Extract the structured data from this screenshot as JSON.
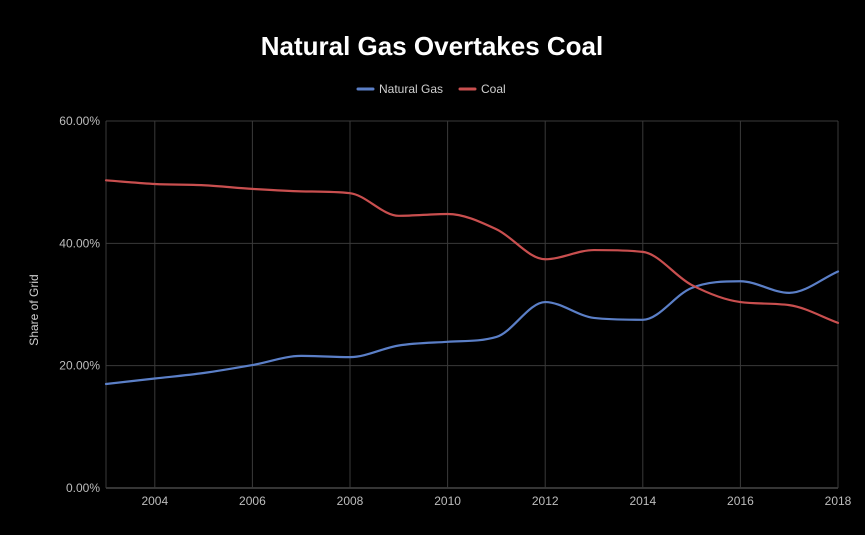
{
  "chart_data": {
    "type": "line",
    "title": "Natural Gas Overtakes Coal",
    "xlabel": "",
    "ylabel": "Share of Grid",
    "x": [
      2003,
      2004,
      2005,
      2006,
      2007,
      2008,
      2009,
      2010,
      2011,
      2012,
      2013,
      2014,
      2015,
      2016,
      2017,
      2018
    ],
    "x_ticks": [
      "2004",
      "2006",
      "2008",
      "2010",
      "2012",
      "2014",
      "2016",
      "2018"
    ],
    "xlim": [
      2003,
      2018
    ],
    "y_ticks": [
      "0.00%",
      "20.00%",
      "40.00%",
      "60.00%"
    ],
    "ylim": [
      0,
      60
    ],
    "grid": true,
    "legend_position": "top",
    "series": [
      {
        "name": "Natural Gas",
        "color": "#5b7fc7",
        "values": [
          17.0,
          17.9,
          18.8,
          20.1,
          21.6,
          21.4,
          23.3,
          23.9,
          24.7,
          30.4,
          27.8,
          27.5,
          32.7,
          33.8,
          31.9,
          35.4
        ]
      },
      {
        "name": "Coal",
        "color": "#c94f4f",
        "values": [
          50.3,
          49.7,
          49.5,
          48.9,
          48.5,
          48.2,
          44.5,
          44.8,
          42.3,
          37.4,
          38.9,
          38.6,
          33.2,
          30.4,
          29.9,
          27.0
        ]
      }
    ]
  }
}
